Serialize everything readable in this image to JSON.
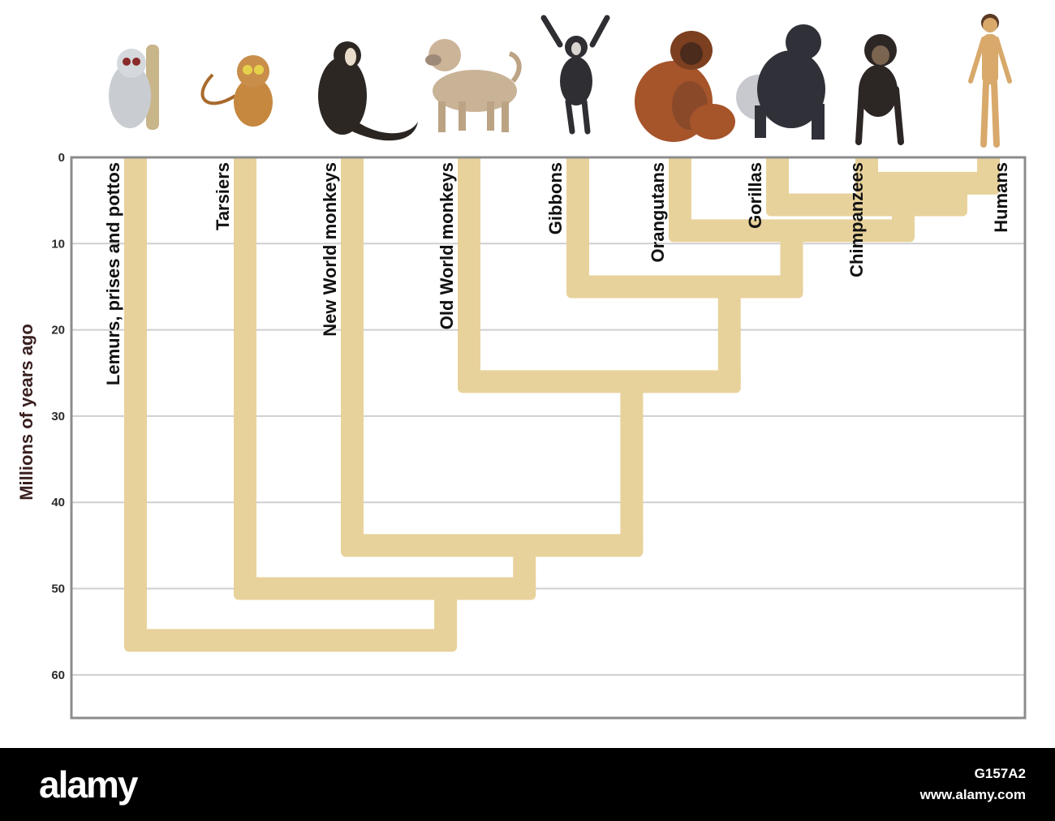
{
  "diagram": {
    "ylabel": "Millions of years ago",
    "ticks": [
      0,
      10,
      20,
      30,
      40,
      50,
      60
    ],
    "y_range": [
      0,
      65
    ],
    "taxa": [
      {
        "id": "lemurs",
        "label": "Lemurs, prises and pottos",
        "icon": "lemur-icon"
      },
      {
        "id": "tarsiers",
        "label": "Tarsiers",
        "icon": "tarsier-icon"
      },
      {
        "id": "nwm",
        "label": "New World monkeys",
        "icon": "new-world-monkey-icon"
      },
      {
        "id": "owm",
        "label": "Old World monkeys",
        "icon": "old-world-monkey-icon"
      },
      {
        "id": "gibbons",
        "label": "Gibbons",
        "icon": "gibbon-icon"
      },
      {
        "id": "orangutans",
        "label": "Orangutans",
        "icon": "orangutan-icon"
      },
      {
        "id": "gorillas",
        "label": "Gorillas",
        "icon": "gorilla-icon"
      },
      {
        "id": "chimps",
        "label": "Chimpanzees",
        "icon": "chimpanzee-icon"
      },
      {
        "id": "humans",
        "label": "Humans",
        "icon": "human-icon"
      }
    ],
    "divergences_mya": {
      "humans_chimpanzees": 3,
      "gorillas": 5.5,
      "orangutans": 8.5,
      "gibbons": 15,
      "old_world_monkeys": 26,
      "new_world_monkeys": 45,
      "tarsiers": 50,
      "lemurs": 56
    },
    "colors": {
      "branch": "#e8d29b",
      "grid": "#cfcfcf",
      "frame": "#8c8c8c"
    }
  },
  "footer": {
    "brand": "alamy",
    "image_id": "G157A2",
    "site": "www.alamy.com"
  }
}
